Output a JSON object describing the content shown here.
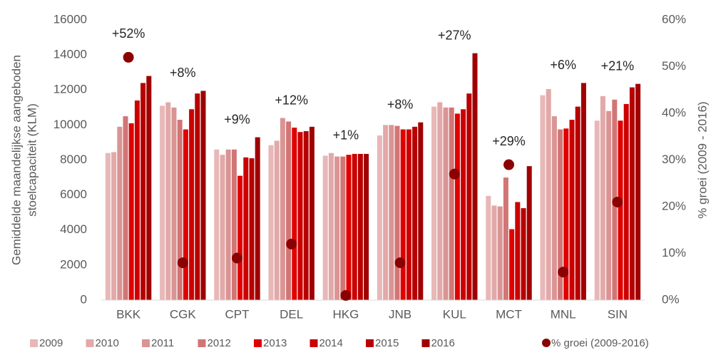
{
  "chart_data": {
    "type": "bar",
    "ylabel": [
      "Gemiddelde maandelijkse aangeboden",
      "stoelcapaciteit (KLM)"
    ],
    "y2label": "% groei (2009 - 2016)",
    "categories": [
      "BKK",
      "CGK",
      "CPT",
      "DEL",
      "HKG",
      "JNB",
      "KUL",
      "MCT",
      "MNL",
      "SIN"
    ],
    "ylim": [
      0,
      16000
    ],
    "yticks": [
      0,
      2000,
      4000,
      6000,
      8000,
      10000,
      12000,
      14000,
      16000
    ],
    "y2lim": [
      0,
      60
    ],
    "y2ticks": [
      {
        "value": 0,
        "label": "0%"
      },
      {
        "value": 10,
        "label": "10%"
      },
      {
        "value": 20,
        "label": "20%"
      },
      {
        "value": 30,
        "label": "30%"
      },
      {
        "value": 40,
        "label": "40%"
      },
      {
        "value": 50,
        "label": "50%"
      },
      {
        "value": 60,
        "label": "60%"
      }
    ],
    "series": [
      {
        "name": "2009",
        "color": "#e8b7b7",
        "values": [
          8400,
          11100,
          8600,
          8850,
          8250,
          9400,
          11050,
          5950,
          11700,
          10250
        ]
      },
      {
        "name": "2010",
        "color": "#e2a9a9",
        "values": [
          8450,
          11300,
          8300,
          9100,
          8400,
          10000,
          11300,
          5400,
          12050,
          11650
        ]
      },
      {
        "name": "2011",
        "color": "#da9494",
        "values": [
          9900,
          11000,
          8600,
          10400,
          8200,
          10000,
          11000,
          5350,
          10500,
          10800
        ]
      },
      {
        "name": "2012",
        "color": "#d27575",
        "values": [
          10500,
          10300,
          8600,
          10200,
          8200,
          9950,
          11000,
          7000,
          9750,
          11450
        ]
      },
      {
        "name": "2013",
        "color": "#e00000",
        "values": [
          10100,
          9750,
          7100,
          9850,
          8300,
          9750,
          10650,
          4050,
          9800,
          10250
        ]
      },
      {
        "name": "2014",
        "color": "#cc0000",
        "values": [
          11400,
          10900,
          8150,
          9600,
          8350,
          9750,
          10900,
          5600,
          10300,
          11200
        ]
      },
      {
        "name": "2015",
        "color": "#b80000",
        "values": [
          12400,
          11800,
          8100,
          9650,
          8350,
          9900,
          11800,
          5250,
          11050,
          12150
        ]
      },
      {
        "name": "2016",
        "color": "#a00000",
        "values": [
          12800,
          11950,
          9300,
          9900,
          8350,
          10150,
          14100,
          7650,
          12400,
          12350
        ]
      },
      {
        "name": "% groei (2009-2016)",
        "type": "scatter",
        "axis": "y2",
        "color": "#8b0000",
        "values": [
          52,
          8,
          9,
          12,
          1,
          8,
          27,
          29,
          6,
          21
        ],
        "value_labels": [
          "+52%",
          "+8%",
          "+9%",
          "+12%",
          "+1%",
          "+8%",
          "+27%",
          "+29%",
          "+6%",
          "+21%"
        ]
      }
    ]
  }
}
